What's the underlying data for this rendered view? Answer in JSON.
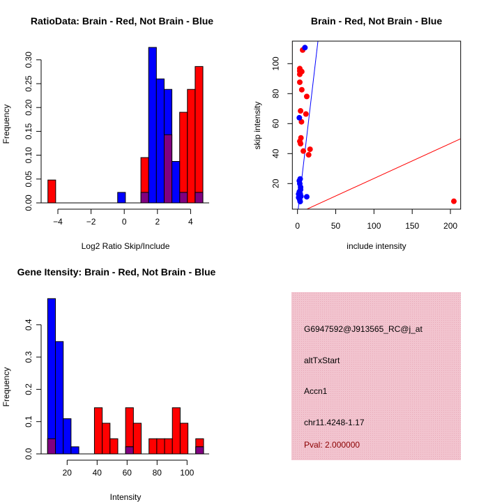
{
  "chart_data": [
    {
      "type": "bar",
      "title": "RatioData: Brain - Red, Not Brain - Blue",
      "xlabel": "Log2 Ratio Skip/Include",
      "ylabel": "Frequency",
      "xticks": [
        -4,
        -2,
        0,
        2,
        4
      ],
      "yticks": [
        "0.00",
        "0.05",
        "0.10",
        "0.15",
        "0.20",
        "0.25",
        "0.30"
      ],
      "ylim": [
        0,
        0.3
      ],
      "bin_start": -4.6,
      "bin_width": 0.467,
      "series": [
        {
          "name": "Brain",
          "color": "#ff0000",
          "bins": [
            [
              0,
              0.048
            ],
            [
              12,
              0.095
            ],
            [
              15,
              0.143
            ],
            [
              17,
              0.19
            ],
            [
              18,
              0.238
            ],
            [
              19,
              0.286
            ]
          ]
        },
        {
          "name": "Not Brain",
          "color": "#0000ff",
          "bins": [
            [
              9,
              0.022
            ],
            [
              12,
              0.022
            ],
            [
              13,
              0.326
            ],
            [
              14,
              0.26
            ],
            [
              15,
              0.238
            ],
            [
              16,
              0.087
            ],
            [
              17,
              0.022
            ],
            [
              19,
              0.022
            ]
          ]
        }
      ],
      "overlap_color": "#800080"
    },
    {
      "type": "scatter",
      "title": "Brain - Red, Not Brain - Blue",
      "xlabel": "include intensity",
      "ylabel": "skip intensity",
      "xticks": [
        0,
        50,
        100,
        150,
        200
      ],
      "yticks": [
        20,
        40,
        60,
        80,
        100
      ],
      "xlim": [
        -6.8,
        213
      ],
      "ylim": [
        2.9,
        115
      ],
      "series": [
        {
          "name": "Brain",
          "color": "#ff0000",
          "points": [
            [
              6.7,
              109.1
            ],
            [
              3,
              96.7
            ],
            [
              3,
              95.1
            ],
            [
              3.5,
              94.4
            ],
            [
              3,
              92.9
            ],
            [
              5.6,
              94.7
            ],
            [
              3,
              87.6
            ],
            [
              5.6,
              82.6
            ],
            [
              12.1,
              78.1
            ],
            [
              4,
              68.5
            ],
            [
              11,
              66.4
            ],
            [
              5.2,
              61.2
            ],
            [
              4.5,
              50.5
            ],
            [
              3,
              48.2
            ],
            [
              4,
              46.6
            ],
            [
              7.6,
              41.7
            ],
            [
              16.4,
              42.9
            ],
            [
              14.6,
              39.2
            ],
            [
              204.5,
              8.2
            ]
          ],
          "fit": {
            "intercept": 0.07,
            "slope": 0.2335
          }
        },
        {
          "name": "Not Brain",
          "color": "#0000ff",
          "points": [
            [
              9.7,
              110.7
            ],
            [
              2.4,
              63.9
            ],
            [
              2.4,
              21.9
            ],
            [
              3.5,
              23.1
            ],
            [
              3,
              19.9
            ],
            [
              4,
              17.6
            ],
            [
              2.4,
              14.5
            ],
            [
              4.5,
              11.5
            ],
            [
              1.5,
              10.7
            ],
            [
              3,
              9.1
            ],
            [
              3.5,
              8.0
            ],
            [
              12.1,
              11.2
            ],
            [
              1.5,
              13
            ],
            [
              3.5,
              13.3
            ],
            [
              4,
              16
            ],
            [
              2.5,
              12
            ]
          ],
          "fit": {
            "intercept": -1.0,
            "slope": 4.34
          }
        }
      ]
    },
    {
      "type": "bar",
      "title": "Gene Itensity: Brain - Red, Not Brain - Blue",
      "xlabel": "Intensity",
      "ylabel": "Frequency",
      "xticks": [
        20,
        40,
        60,
        80,
        100
      ],
      "yticks": [
        "0.0",
        "0.1",
        "0.2",
        "0.3",
        "0.4"
      ],
      "ylim": [
        0,
        0.48
      ],
      "bin_start": 7,
      "bin_width": 5.2,
      "series": [
        {
          "name": "Brain",
          "color": "#ff0000",
          "bins": [
            [
              0,
              0.047
            ],
            [
              6,
              0.143
            ],
            [
              7,
              0.095
            ],
            [
              8,
              0.047
            ],
            [
              10,
              0.143
            ],
            [
              11,
              0.095
            ],
            [
              13,
              0.047
            ],
            [
              14,
              0.047
            ],
            [
              15,
              0.047
            ],
            [
              16,
              0.143
            ],
            [
              17,
              0.095
            ],
            [
              19,
              0.047
            ]
          ]
        },
        {
          "name": "Not Brain",
          "color": "#0000ff",
          "bins": [
            [
              0,
              0.481
            ],
            [
              1,
              0.348
            ],
            [
              2,
              0.109
            ],
            [
              3,
              0.022
            ],
            [
              10,
              0.022
            ],
            [
              19,
              0.022
            ]
          ]
        }
      ],
      "overlap_color": "#800080"
    }
  ],
  "info": {
    "probe": "G6947592@J913565_RC@j_at",
    "event": "altTxStart",
    "gene": "Accn1",
    "location": "chr11.4248-1.17",
    "pval": "Pval: 2.000000"
  }
}
